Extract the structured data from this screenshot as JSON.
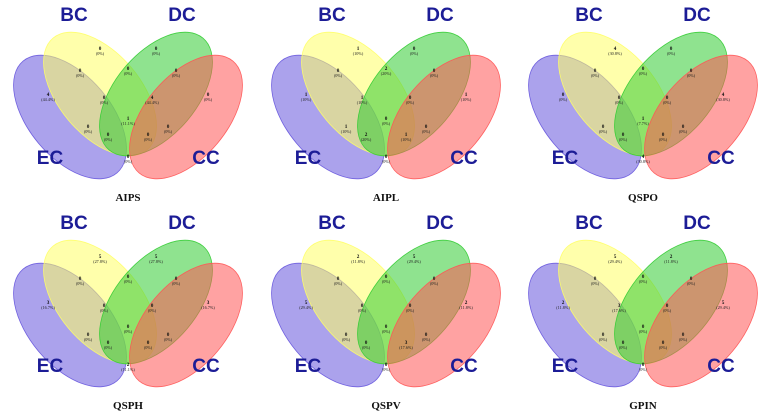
{
  "set_labels": {
    "bc": "BC",
    "dc": "DC",
    "ec": "EC",
    "cc": "CC"
  },
  "colors": {
    "bc": "#ffff66",
    "dc": "#33cc33",
    "ec": "#6655dd",
    "cc": "#ff5555"
  },
  "panels": [
    {
      "title": "AIPS",
      "regions": {
        "ec_only": {
          "count": "4",
          "pct": "(44.4%)"
        },
        "bc_only": {
          "count": "0",
          "pct": "(0%)"
        },
        "dc_only": {
          "count": "0",
          "pct": "(0%)"
        },
        "cc_only": {
          "count": "0",
          "pct": "(0%)"
        },
        "ec_bc": {
          "count": "0",
          "pct": "(0%)"
        },
        "bc_dc": {
          "count": "0",
          "pct": "(0%)"
        },
        "dc_cc": {
          "count": "0",
          "pct": "(0%)"
        },
        "ec_cc": {
          "count": "0",
          "pct": "(0%)"
        },
        "ec_bc_dc": {
          "count": "0",
          "pct": "(0%)"
        },
        "bc_dc_cc": {
          "count": "4",
          "pct": "(44.4%)"
        },
        "ec_dc_cc": {
          "count": "0",
          "pct": "(0%)"
        },
        "ec_bc_cc": {
          "count": "0",
          "pct": "(0%)"
        },
        "all": {
          "count": "1",
          "pct": "(11.1%)"
        },
        "ec_dc": {
          "count": "0",
          "pct": "(0%)"
        },
        "bc_cc": {
          "count": "0",
          "pct": "(0%)"
        }
      }
    },
    {
      "title": "AIPL",
      "regions": {
        "ec_only": {
          "count": "1",
          "pct": "(10%)"
        },
        "bc_only": {
          "count": "1",
          "pct": "(10%)"
        },
        "dc_only": {
          "count": "0",
          "pct": "(0%)"
        },
        "cc_only": {
          "count": "1",
          "pct": "(10%)"
        },
        "ec_bc": {
          "count": "0",
          "pct": "(0%)"
        },
        "bc_dc": {
          "count": "2",
          "pct": "(20%)"
        },
        "dc_cc": {
          "count": "0",
          "pct": "(0%)"
        },
        "ec_cc": {
          "count": "0",
          "pct": "(0%)"
        },
        "ec_bc_dc": {
          "count": "1",
          "pct": "(10%)"
        },
        "bc_dc_cc": {
          "count": "0",
          "pct": "(0%)"
        },
        "ec_dc_cc": {
          "count": "1",
          "pct": "(10%)"
        },
        "ec_bc_cc": {
          "count": "2",
          "pct": "(20%)"
        },
        "all": {
          "count": "0",
          "pct": "(0%)"
        },
        "ec_dc": {
          "count": "1",
          "pct": "(10%)"
        },
        "bc_cc": {
          "count": "0",
          "pct": "(0%)"
        }
      }
    },
    {
      "title": "QSPO",
      "regions": {
        "ec_only": {
          "count": "0",
          "pct": "(0%)"
        },
        "bc_only": {
          "count": "4",
          "pct": "(30.8%)"
        },
        "dc_only": {
          "count": "0",
          "pct": "(0%)"
        },
        "cc_only": {
          "count": "4",
          "pct": "(30.8%)"
        },
        "ec_bc": {
          "count": "0",
          "pct": "(0%)"
        },
        "bc_dc": {
          "count": "0",
          "pct": "(0%)"
        },
        "dc_cc": {
          "count": "0",
          "pct": "(0%)"
        },
        "ec_cc": {
          "count": "4",
          "pct": "(30.8%)"
        },
        "ec_bc_dc": {
          "count": "0",
          "pct": "(0%)"
        },
        "bc_dc_cc": {
          "count": "0",
          "pct": "(0%)"
        },
        "ec_dc_cc": {
          "count": "0",
          "pct": "(0%)"
        },
        "ec_bc_cc": {
          "count": "0",
          "pct": "(0%)"
        },
        "all": {
          "count": "1",
          "pct": "(7.7%)"
        },
        "ec_dc": {
          "count": "0",
          "pct": "(0%)"
        },
        "bc_cc": {
          "count": "0",
          "pct": "(0%)"
        }
      }
    },
    {
      "title": "QSPH",
      "regions": {
        "ec_only": {
          "count": "3",
          "pct": "(16.7%)"
        },
        "bc_only": {
          "count": "5",
          "pct": "(27.8%)"
        },
        "dc_only": {
          "count": "5",
          "pct": "(27.8%)"
        },
        "cc_only": {
          "count": "3",
          "pct": "(16.7%)"
        },
        "ec_bc": {
          "count": "0",
          "pct": "(0%)"
        },
        "bc_dc": {
          "count": "0",
          "pct": "(0%)"
        },
        "dc_cc": {
          "count": "0",
          "pct": "(0%)"
        },
        "ec_cc": {
          "count": "2",
          "pct": "(11.1%)"
        },
        "ec_bc_dc": {
          "count": "0",
          "pct": "(0%)"
        },
        "bc_dc_cc": {
          "count": "0",
          "pct": "(0%)"
        },
        "ec_dc_cc": {
          "count": "0",
          "pct": "(0%)"
        },
        "ec_bc_cc": {
          "count": "0",
          "pct": "(0%)"
        },
        "all": {
          "count": "0",
          "pct": "(0%)"
        },
        "ec_dc": {
          "count": "0",
          "pct": "(0%)"
        },
        "bc_cc": {
          "count": "0",
          "pct": "(0%)"
        }
      }
    },
    {
      "title": "QSPV",
      "regions": {
        "ec_only": {
          "count": "5",
          "pct": "(29.4%)"
        },
        "bc_only": {
          "count": "2",
          "pct": "(11.8%)"
        },
        "dc_only": {
          "count": "5",
          "pct": "(29.4%)"
        },
        "cc_only": {
          "count": "2",
          "pct": "(11.8%)"
        },
        "ec_bc": {
          "count": "0",
          "pct": "(0%)"
        },
        "bc_dc": {
          "count": "0",
          "pct": "(0%)"
        },
        "dc_cc": {
          "count": "0",
          "pct": "(0%)"
        },
        "ec_cc": {
          "count": "0",
          "pct": "(0%)"
        },
        "ec_bc_dc": {
          "count": "0",
          "pct": "(0%)"
        },
        "bc_dc_cc": {
          "count": "0",
          "pct": "(0%)"
        },
        "ec_dc_cc": {
          "count": "3",
          "pct": "(17.6%)"
        },
        "ec_bc_cc": {
          "count": "0",
          "pct": "(0%)"
        },
        "all": {
          "count": "0",
          "pct": "(0%)"
        },
        "ec_dc": {
          "count": "0",
          "pct": "(0%)"
        },
        "bc_cc": {
          "count": "0",
          "pct": "(0%)"
        }
      }
    },
    {
      "title": "GPIN",
      "regions": {
        "ec_only": {
          "count": "2",
          "pct": "(11.8%)"
        },
        "bc_only": {
          "count": "5",
          "pct": "(29.4%)"
        },
        "dc_only": {
          "count": "2",
          "pct": "(11.8%)"
        },
        "cc_only": {
          "count": "5",
          "pct": "(29.4%)"
        },
        "ec_bc": {
          "count": "0",
          "pct": "(0%)"
        },
        "bc_dc": {
          "count": "0",
          "pct": "(0%)"
        },
        "dc_cc": {
          "count": "0",
          "pct": "(0%)"
        },
        "ec_cc": {
          "count": "0",
          "pct": "(0%)"
        },
        "ec_bc_dc": {
          "count": "3",
          "pct": "(17.6%)"
        },
        "bc_dc_cc": {
          "count": "0",
          "pct": "(0%)"
        },
        "ec_dc_cc": {
          "count": "0",
          "pct": "(0%)"
        },
        "ec_bc_cc": {
          "count": "0",
          "pct": "(0%)"
        },
        "all": {
          "count": "0",
          "pct": "(0%)"
        },
        "ec_dc": {
          "count": "0",
          "pct": "(0%)"
        },
        "bc_cc": {
          "count": "0",
          "pct": "(0%)"
        }
      }
    }
  ]
}
